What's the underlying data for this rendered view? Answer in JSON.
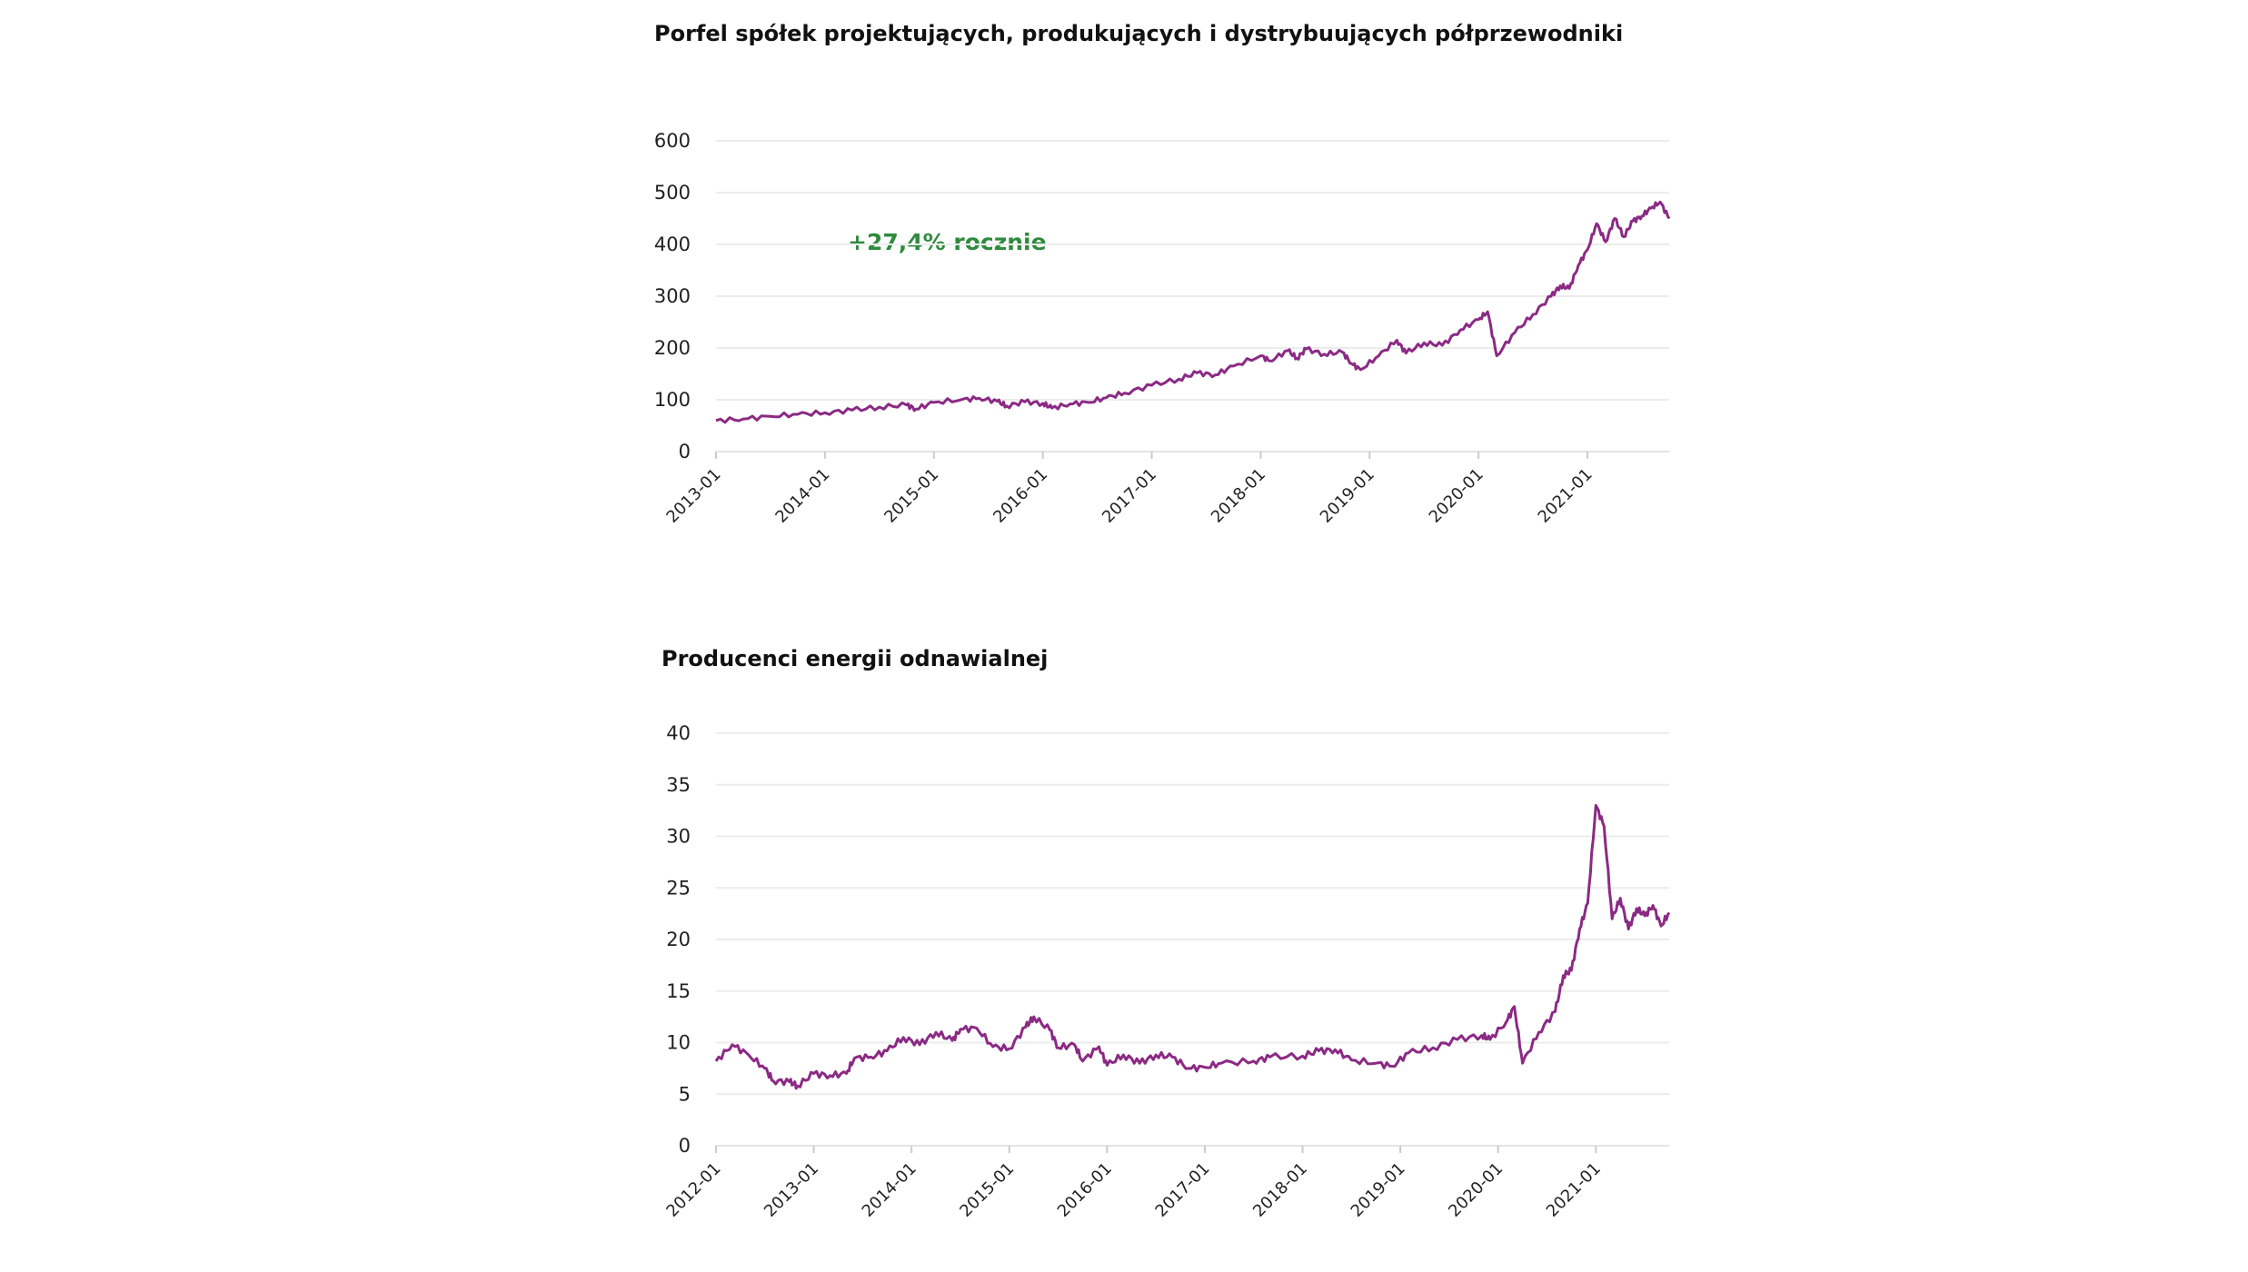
{
  "chart_data": [
    {
      "type": "line",
      "title": "Porfel spółek projektujących, produkujących i dystrybuujących półprzewodniki",
      "annotation": "+27,4% rocznie",
      "annotation_color": "#2e8b3e",
      "line_color": "#8b2a84",
      "ylim": [
        0,
        600
      ],
      "yticks": [
        0,
        100,
        200,
        300,
        400,
        500,
        600
      ],
      "xticks": [
        "2013-01",
        "2014-01",
        "2015-01",
        "2016-01",
        "2017-01",
        "2018-01",
        "2019-01",
        "2020-01",
        "2021-01"
      ],
      "xlim": [
        "2013-01",
        "2021-10"
      ],
      "grid": true,
      "series": [
        {
          "points": [
            [
              "2013-01",
              60
            ],
            [
              "2013-04",
              63
            ],
            [
              "2013-07",
              68
            ],
            [
              "2013-10",
              72
            ],
            [
              "2014-01",
              75
            ],
            [
              "2014-04",
              80
            ],
            [
              "2014-07",
              86
            ],
            [
              "2014-10",
              90
            ],
            [
              "2014-11",
              82
            ],
            [
              "2015-01",
              95
            ],
            [
              "2015-04",
              100
            ],
            [
              "2015-06",
              103
            ],
            [
              "2015-08",
              97
            ],
            [
              "2015-09",
              88
            ],
            [
              "2015-11",
              96
            ],
            [
              "2016-01",
              93
            ],
            [
              "2016-02",
              84
            ],
            [
              "2016-04",
              92
            ],
            [
              "2016-06",
              95
            ],
            [
              "2016-08",
              104
            ],
            [
              "2016-10",
              113
            ],
            [
              "2017-01",
              128
            ],
            [
              "2017-04",
              140
            ],
            [
              "2017-06",
              152
            ],
            [
              "2017-08",
              148
            ],
            [
              "2017-10",
              165
            ],
            [
              "2018-01",
              185
            ],
            [
              "2018-02",
              175
            ],
            [
              "2018-04",
              195
            ],
            [
              "2018-05",
              180
            ],
            [
              "2018-06",
              198
            ],
            [
              "2018-08",
              188
            ],
            [
              "2018-10",
              192
            ],
            [
              "2018-11",
              170
            ],
            [
              "2018-12",
              158
            ],
            [
              "2019-02",
              185
            ],
            [
              "2019-04",
              215
            ],
            [
              "2019-05",
              190
            ],
            [
              "2019-07",
              210
            ],
            [
              "2019-09",
              205
            ],
            [
              "2019-11",
              235
            ],
            [
              "2020-01",
              255
            ],
            [
              "2020-02",
              270
            ],
            [
              "2020-03",
              185
            ],
            [
              "2020-05",
              230
            ],
            [
              "2020-07",
              265
            ],
            [
              "2020-09",
              300
            ],
            [
              "2020-10",
              320
            ],
            [
              "2020-11",
              315
            ],
            [
              "2020-12",
              360
            ],
            [
              "2021-01",
              390
            ],
            [
              "2021-02",
              440
            ],
            [
              "2021-03",
              405
            ],
            [
              "2021-04",
              450
            ],
            [
              "2021-05",
              415
            ],
            [
              "2021-06",
              445
            ],
            [
              "2021-07",
              455
            ],
            [
              "2021-08",
              470
            ],
            [
              "2021-09",
              482
            ],
            [
              "2021-10",
              450
            ]
          ]
        }
      ]
    },
    {
      "type": "line",
      "title": "Producenci energii odnawialnej",
      "line_color": "#8b2a84",
      "ylim": [
        0,
        40
      ],
      "yticks": [
        0,
        5,
        10,
        15,
        20,
        25,
        30,
        35,
        40
      ],
      "xticks": [
        "2012-01",
        "2013-01",
        "2014-01",
        "2015-01",
        "2016-01",
        "2017-01",
        "2018-01",
        "2019-01",
        "2020-01",
        "2021-01"
      ],
      "xlim": [
        "2012-01",
        "2021-10"
      ],
      "grid": true,
      "series": [
        {
          "points": [
            [
              "2012-01",
              8.2
            ],
            [
              "2012-03",
              9.8
            ],
            [
              "2012-05",
              8.8
            ],
            [
              "2012-07",
              7.5
            ],
            [
              "2012-08",
              6.3
            ],
            [
              "2012-10",
              6.2
            ],
            [
              "2012-11",
              5.8
            ],
            [
              "2013-01",
              7.0
            ],
            [
              "2013-03",
              6.8
            ],
            [
              "2013-05",
              7.0
            ],
            [
              "2013-06",
              8.5
            ],
            [
              "2013-08",
              8.6
            ],
            [
              "2013-10",
              9.2
            ],
            [
              "2013-12",
              10.5
            ],
            [
              "2014-02",
              9.8
            ],
            [
              "2014-04",
              11.0
            ],
            [
              "2014-06",
              10.2
            ],
            [
              "2014-07",
              11.3
            ],
            [
              "2014-09",
              11.4
            ],
            [
              "2014-11",
              9.6
            ],
            [
              "2015-01",
              9.4
            ],
            [
              "2015-03",
              11.5
            ],
            [
              "2015-04",
              12.5
            ],
            [
              "2015-06",
              11.2
            ],
            [
              "2015-07",
              9.5
            ],
            [
              "2015-09",
              9.8
            ],
            [
              "2015-10",
              8.2
            ],
            [
              "2015-12",
              9.6
            ],
            [
              "2016-01",
              7.8
            ],
            [
              "2016-03",
              8.8
            ],
            [
              "2016-05",
              8.0
            ],
            [
              "2016-07",
              8.8
            ],
            [
              "2016-09",
              8.6
            ],
            [
              "2016-11",
              7.5
            ],
            [
              "2017-01",
              7.6
            ],
            [
              "2017-03",
              8.0
            ],
            [
              "2017-07",
              8.2
            ],
            [
              "2017-09",
              8.6
            ],
            [
              "2018-01",
              8.7
            ],
            [
              "2018-03",
              9.2
            ],
            [
              "2018-05",
              9.3
            ],
            [
              "2018-07",
              8.3
            ],
            [
              "2018-10",
              8.0
            ],
            [
              "2018-12",
              7.7
            ],
            [
              "2019-02",
              9.0
            ],
            [
              "2019-05",
              9.5
            ],
            [
              "2019-08",
              10.3
            ],
            [
              "2019-11",
              10.7
            ],
            [
              "2019-12",
              10.3
            ],
            [
              "2020-02",
              12.0
            ],
            [
              "2020-03",
              13.5
            ],
            [
              "2020-04",
              8.0
            ],
            [
              "2020-06",
              11.0
            ],
            [
              "2020-08",
              13.0
            ],
            [
              "2020-09",
              16.5
            ],
            [
              "2020-10",
              17.0
            ],
            [
              "2020-11",
              21.0
            ],
            [
              "2020-12",
              23.5
            ],
            [
              "2021-01",
              33.0
            ],
            [
              "2021-02",
              31.0
            ],
            [
              "2021-03",
              22.0
            ],
            [
              "2021-04",
              24.0
            ],
            [
              "2021-05",
              21.0
            ],
            [
              "2021-06",
              23.0
            ],
            [
              "2021-07",
              22.3
            ],
            [
              "2021-08",
              23.3
            ],
            [
              "2021-09",
              21.3
            ],
            [
              "2021-10",
              22.6
            ]
          ]
        }
      ]
    }
  ]
}
